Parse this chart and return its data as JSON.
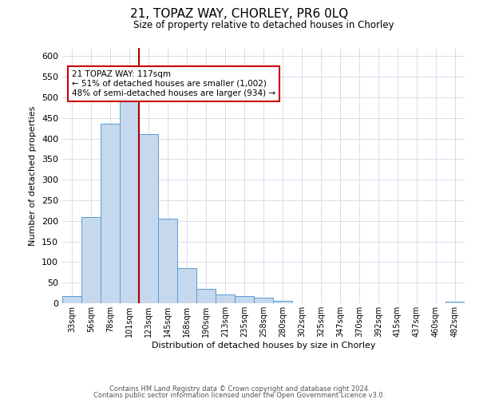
{
  "title": "21, TOPAZ WAY, CHORLEY, PR6 0LQ",
  "subtitle": "Size of property relative to detached houses in Chorley",
  "xlabel": "Distribution of detached houses by size in Chorley",
  "ylabel": "Number of detached properties",
  "bar_labels": [
    "33sqm",
    "56sqm",
    "78sqm",
    "101sqm",
    "123sqm",
    "145sqm",
    "168sqm",
    "190sqm",
    "213sqm",
    "235sqm",
    "258sqm",
    "280sqm",
    "302sqm",
    "325sqm",
    "347sqm",
    "370sqm",
    "392sqm",
    "415sqm",
    "437sqm",
    "460sqm",
    "482sqm"
  ],
  "bar_values": [
    18,
    210,
    435,
    500,
    410,
    205,
    85,
    35,
    22,
    18,
    13,
    5,
    0,
    0,
    0,
    0,
    0,
    0,
    0,
    0,
    3
  ],
  "bar_color": "#c5d8ed",
  "bar_edge_color": "#5b9bd5",
  "vline_x": 4,
  "vline_color": "#aa0000",
  "annotation_text": "21 TOPAZ WAY: 117sqm\n← 51% of detached houses are smaller (1,002)\n48% of semi-detached houses are larger (934) →",
  "annotation_box_color": "#ffffff",
  "annotation_box_edge_color": "#cc0000",
  "ylim": [
    0,
    620
  ],
  "yticks": [
    0,
    50,
    100,
    150,
    200,
    250,
    300,
    350,
    400,
    450,
    500,
    550,
    600
  ],
  "footer_line1": "Contains HM Land Registry data © Crown copyright and database right 2024.",
  "footer_line2": "Contains public sector information licensed under the Open Government Licence v3.0.",
  "bg_color": "#ffffff",
  "grid_color": "#d0d8e8",
  "fig_bg_color": "#ffffff"
}
